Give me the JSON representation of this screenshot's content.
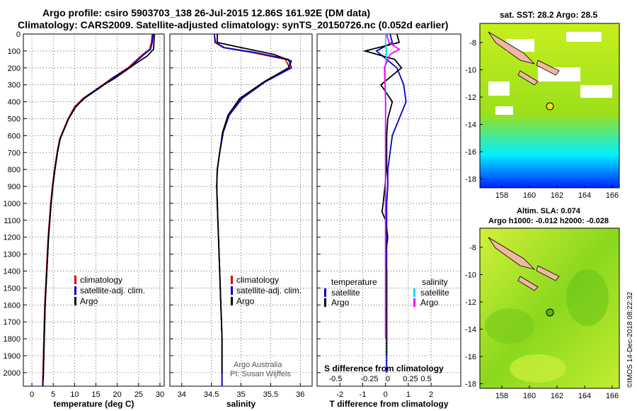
{
  "title_line1": "Argo profile: csiro 5903703_138 26-Jul-2015 12.86S 161.92E (DM data)",
  "title_line2": "Climatology: CARS2009. Satellite-adjusted climatology: synTS_20150726.nc (0.052d earlier)",
  "map_sst_title": "sat. SST: 28.2 Argo: 28.5",
  "map_sla_title1": "Altim. SLA: 0.074",
  "map_sla_title2": "Argo h1000: -0.012 h2000: -0.028",
  "side_credit": "©IMOS 14-Dec-2018 08:22:32",
  "footnote1": "Argo Australia",
  "footnote2": "PI: Susan Wijffels",
  "chart_data": [
    {
      "type": "line",
      "xlabel": "temperature (deg C)",
      "ylabel": "",
      "xlim": [
        -2,
        31
      ],
      "ylim": [
        2080,
        0
      ],
      "xticks": [
        "0",
        "5",
        "10",
        "15",
        "20",
        "25",
        "30"
      ],
      "yticks": [
        "0",
        "100",
        "200",
        "300",
        "400",
        "500",
        "600",
        "700",
        "800",
        "900",
        "1000",
        "1100",
        "1200",
        "1300",
        "1400",
        "1500",
        "1600",
        "1700",
        "1800",
        "1900",
        "2000"
      ],
      "legend": [
        "climatology",
        "satellite-adj. clim.",
        "Argo"
      ],
      "legend_position": "bottom-right",
      "series": [
        {
          "name": "climatology",
          "color": "#e00000",
          "x": [
            28.2,
            28.0,
            27.6,
            26.0,
            22.5,
            18.8,
            15.5,
            12.0,
            10.0,
            8.5,
            7.5,
            6.5,
            5.9,
            5.3,
            4.8,
            4.4,
            4.1,
            3.8,
            3.6,
            3.4,
            3.2,
            3.0,
            2.9,
            2.8,
            2.7,
            2.6,
            2.55,
            2.5
          ],
          "y": [
            0,
            50,
            90,
            120,
            200,
            260,
            320,
            380,
            430,
            500,
            560,
            620,
            700,
            800,
            900,
            1000,
            1100,
            1200,
            1300,
            1400,
            1500,
            1600,
            1700,
            1800,
            1900,
            2000,
            2040,
            2080
          ]
        },
        {
          "name": "satellite-adj. clim.",
          "color": "#0000d0",
          "x": [
            28.4,
            28.2,
            27.8,
            26.3,
            22.8,
            19.0,
            15.8,
            12.3,
            10.2,
            8.6,
            7.6,
            6.6,
            6.0,
            5.4,
            4.9,
            4.5,
            4.2,
            3.9,
            3.7,
            3.5,
            3.3,
            3.1,
            3.0,
            2.9,
            2.8,
            2.7,
            2.65,
            2.6
          ],
          "y": [
            0,
            50,
            90,
            120,
            200,
            260,
            320,
            380,
            430,
            500,
            560,
            620,
            700,
            800,
            900,
            1000,
            1100,
            1200,
            1300,
            1400,
            1500,
            1600,
            1700,
            1800,
            1900,
            2000,
            2040,
            2080
          ]
        },
        {
          "name": "Argo",
          "color": "#000000",
          "x": [
            28.7,
            28.6,
            28.5,
            27.0,
            24.0,
            19.5,
            15.5,
            12.2,
            10.3,
            8.6,
            7.6,
            6.6,
            6.0,
            5.4,
            4.9,
            4.5,
            4.2,
            3.9,
            3.7,
            3.5,
            3.3,
            3.1,
            3.0,
            2.9,
            2.8,
            2.7,
            2.65
          ],
          "y": [
            0,
            50,
            90,
            130,
            180,
            260,
            320,
            380,
            430,
            500,
            560,
            620,
            700,
            800,
            900,
            1000,
            1100,
            1200,
            1300,
            1400,
            1500,
            1600,
            1700,
            1800,
            1900,
            2000,
            2040
          ]
        }
      ]
    },
    {
      "type": "line",
      "xlabel": "salinity",
      "xlim": [
        33.8,
        36.2
      ],
      "ylim": [
        2080,
        0
      ],
      "xticks": [
        "34",
        "34.5",
        "35",
        "35.5",
        "36"
      ],
      "legend": [
        "climatology",
        "satellite-adj. clim.",
        "Argo"
      ],
      "legend_position": "bottom-right",
      "series": [
        {
          "name": "climatology",
          "color": "#e00000",
          "x": [
            34.55,
            34.56,
            34.7,
            35.2,
            35.75,
            35.82,
            35.4,
            35.0,
            34.8,
            34.7,
            34.64,
            34.6,
            34.59,
            34.6,
            34.61,
            34.62,
            34.63,
            34.64,
            34.65,
            34.66,
            34.67,
            34.68,
            34.68,
            34.68
          ],
          "y": [
            0,
            50,
            80,
            110,
            150,
            200,
            280,
            380,
            480,
            580,
            700,
            800,
            900,
            1000,
            1100,
            1200,
            1300,
            1400,
            1500,
            1600,
            1700,
            1800,
            2000,
            2080
          ]
        },
        {
          "name": "satellite-adj. clim.",
          "color": "#0000d0",
          "x": [
            34.55,
            34.57,
            34.72,
            35.25,
            35.8,
            35.85,
            35.42,
            35.02,
            34.8,
            34.7,
            34.64,
            34.6,
            34.59,
            34.6,
            34.61,
            34.62,
            34.63,
            34.64,
            34.65,
            34.66,
            34.67,
            34.68,
            34.68,
            34.68
          ],
          "y": [
            0,
            50,
            80,
            110,
            150,
            200,
            280,
            380,
            480,
            580,
            700,
            800,
            900,
            1000,
            1100,
            1200,
            1300,
            1400,
            1500,
            1600,
            1700,
            1800,
            2000,
            2080
          ]
        },
        {
          "name": "Argo",
          "color": "#000000",
          "x": [
            34.6,
            34.6,
            35.0,
            35.55,
            35.85,
            35.8,
            35.4,
            34.98,
            34.78,
            34.69,
            34.64,
            34.6,
            34.59,
            34.6,
            34.61,
            34.62,
            34.63,
            34.64,
            34.65,
            34.66,
            34.67,
            34.68,
            34.68
          ],
          "y": [
            0,
            50,
            80,
            120,
            160,
            200,
            280,
            380,
            480,
            580,
            700,
            800,
            900,
            1000,
            1100,
            1200,
            1300,
            1400,
            1500,
            1600,
            1700,
            1800,
            2000
          ]
        }
      ]
    },
    {
      "type": "line",
      "xlabel": "T difference from climatology",
      "xlim": [
        -3,
        3.3
      ],
      "ylim": [
        2080,
        0
      ],
      "xticks": [
        "-2",
        "-1",
        "0",
        "1",
        "2"
      ],
      "top_axis_label": "S difference from climatology",
      "top_xticks": [
        "-0.5",
        "-0.25",
        "0",
        "0.25",
        "0.5"
      ],
      "legend_left_title": "temperature",
      "legend_right_title": "salinity",
      "legend_left": [
        "satellite",
        "Argo"
      ],
      "legend_right": [
        "satellite",
        "Argo"
      ],
      "series": [
        {
          "name": "temperature satellite",
          "color": "#0000d0",
          "x": [
            0.2,
            0.3,
            -0.4,
            0.5,
            0.8,
            0.9,
            0.6,
            0.3,
            0.2,
            0.1,
            0.1,
            0.05,
            0.05,
            0.05,
            0.05,
            0.05,
            0.05,
            0.05,
            0.05,
            0.05,
            0.05,
            0.05
          ],
          "y": [
            0,
            50,
            100,
            200,
            300,
            400,
            500,
            600,
            700,
            800,
            900,
            1000,
            1100,
            1200,
            1300,
            1400,
            1500,
            1600,
            1700,
            1800,
            1900,
            2000
          ]
        },
        {
          "name": "temperature Argo",
          "color": "#000000",
          "x": [
            0.5,
            0.6,
            -0.9,
            0.4,
            0.7,
            -0.2,
            0.3,
            0.1,
            0.05,
            0.05,
            -0.1,
            -0.15,
            0.0,
            0.1,
            0.0,
            0.05,
            0.05,
            0.05,
            0.05,
            0.05,
            0.05
          ],
          "y": [
            0,
            50,
            100,
            150,
            200,
            300,
            400,
            500,
            600,
            800,
            1000,
            1050,
            1100,
            1200,
            1300,
            1400,
            1500,
            1600,
            1700,
            1800,
            1900
          ]
        },
        {
          "name": "salinity satellite",
          "color": "#00e0e0",
          "x": [
            0.02,
            0.0,
            0.05,
            -0.02,
            0.01,
            0.0,
            0.0,
            0.0,
            0.0,
            0.0,
            0.0,
            0.0
          ],
          "y": [
            0,
            50,
            100,
            200,
            400,
            600,
            800,
            1000,
            1200,
            1400,
            1600,
            1800
          ]
        },
        {
          "name": "salinity Argo",
          "color": "#ff00ff",
          "x": [
            0.05,
            0.15,
            0.6,
            0.2,
            -0.05,
            -0.02,
            0.0,
            0.0,
            0.0,
            0.0,
            0.0,
            0.0,
            0.0,
            0.0
          ],
          "y": [
            0,
            50,
            90,
            120,
            200,
            300,
            400,
            600,
            800,
            1000,
            1200,
            1400,
            1600,
            1800
          ]
        }
      ]
    }
  ],
  "maps": [
    {
      "xticks": [
        "158",
        "160",
        "162",
        "164",
        "166"
      ],
      "yticks": [
        "-8",
        "-10",
        "-12",
        "-14",
        "-16",
        "-18"
      ]
    },
    {
      "xticks": [
        "158",
        "160",
        "162",
        "164",
        "166"
      ],
      "yticks": [
        "-8",
        "-10",
        "-12",
        "-14",
        "-16",
        "-18"
      ]
    }
  ]
}
